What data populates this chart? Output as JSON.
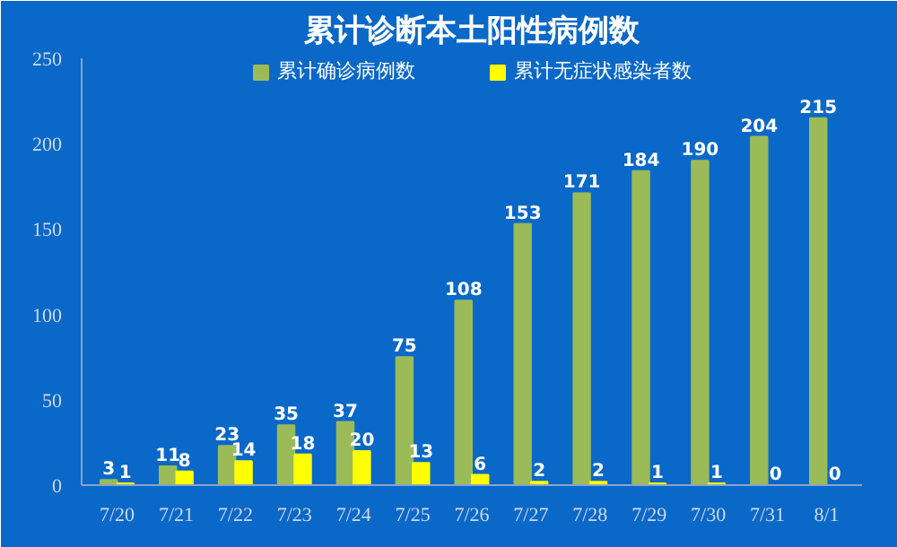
{
  "chart_data": {
    "type": "bar",
    "title": "累计诊断本土阳性病例数",
    "categories": [
      "7/20",
      "7/21",
      "7/22",
      "7/23",
      "7/24",
      "7/25",
      "7/26",
      "7/27",
      "7/28",
      "7/29",
      "7/30",
      "7/31",
      "8/1"
    ],
    "series": [
      {
        "name": "累计确诊病例数",
        "color": "#9bbb59",
        "values": [
          3,
          11,
          23,
          35,
          37,
          75,
          108,
          153,
          171,
          184,
          190,
          204,
          215
        ]
      },
      {
        "name": "累计无症状感染者数",
        "color": "#ffff00",
        "values": [
          1,
          8,
          14,
          18,
          20,
          13,
          6,
          2,
          2,
          1,
          1,
          0,
          0
        ]
      }
    ],
    "ylim": [
      0,
      250
    ],
    "yticks": [
      0,
      50,
      100,
      150,
      200,
      250
    ],
    "grid": false,
    "legend": "top",
    "data_labels": true
  }
}
